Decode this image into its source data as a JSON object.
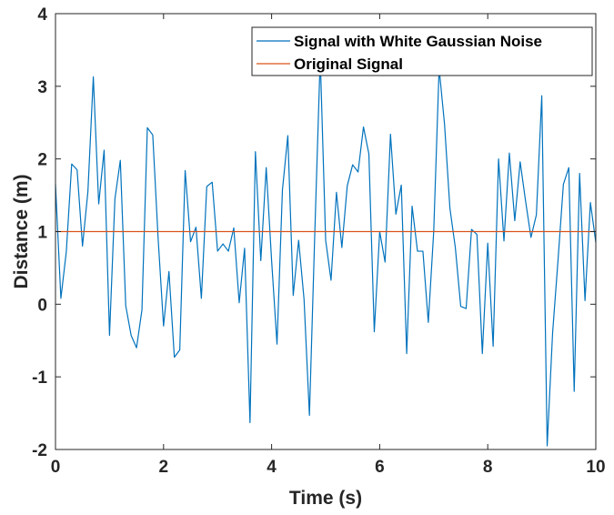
{
  "chart_data": {
    "type": "line",
    "title": "",
    "xlabel": "Time (s)",
    "ylabel": "Distance (m)",
    "xlim": [
      0,
      10
    ],
    "ylim": [
      -2,
      4
    ],
    "xticks": [
      0,
      2,
      4,
      6,
      8,
      10
    ],
    "yticks": [
      -2,
      -1,
      0,
      1,
      2,
      3,
      4
    ],
    "xtick_labels": [
      "0",
      "2",
      "4",
      "6",
      "8",
      "10"
    ],
    "ytick_labels": [
      "-2",
      "-1",
      "0",
      "1",
      "2",
      "3",
      "4"
    ],
    "grid": false,
    "legend_position": "top-right",
    "series": [
      {
        "name": "Signal with White Gaussian Noise",
        "color": "#0072BD",
        "x": [
          0,
          0.1,
          0.2,
          0.3,
          0.4,
          0.5,
          0.6,
          0.7,
          0.8,
          0.9,
          1.0,
          1.1,
          1.2,
          1.3,
          1.4,
          1.5,
          1.6,
          1.7,
          1.8,
          1.9,
          2.0,
          2.1,
          2.2,
          2.3,
          2.4,
          2.5,
          2.6,
          2.7,
          2.8,
          2.9,
          3.0,
          3.1,
          3.2,
          3.3,
          3.4,
          3.5,
          3.6,
          3.7,
          3.8,
          3.9,
          4.0,
          4.1,
          4.2,
          4.3,
          4.4,
          4.5,
          4.6,
          4.7,
          4.8,
          4.9,
          5.0,
          5.1,
          5.2,
          5.3,
          5.4,
          5.5,
          5.6,
          5.7,
          5.8,
          5.9,
          6.0,
          6.1,
          6.2,
          6.3,
          6.4,
          6.5,
          6.6,
          6.7,
          6.8,
          6.9,
          7.0,
          7.1,
          7.2,
          7.3,
          7.4,
          7.5,
          7.6,
          7.7,
          7.8,
          7.9,
          8.0,
          8.1,
          8.2,
          8.3,
          8.4,
          8.5,
          8.6,
          8.7,
          8.8,
          8.9,
          9.0,
          9.1,
          9.2,
          9.3,
          9.4,
          9.5,
          9.6,
          9.7,
          9.8,
          9.9,
          10.0
        ],
        "values": [
          1.65,
          0.08,
          0.72,
          1.93,
          1.85,
          0.8,
          1.55,
          3.13,
          1.38,
          2.12,
          -0.43,
          1.45,
          1.98,
          -0.02,
          -0.43,
          -0.6,
          -0.08,
          2.43,
          2.33,
          0.9,
          -0.3,
          0.45,
          -0.73,
          -0.63,
          1.84,
          0.86,
          1.06,
          0.08,
          1.62,
          1.68,
          0.73,
          0.83,
          0.73,
          1.05,
          0.02,
          0.77,
          -1.63,
          2.1,
          0.6,
          1.88,
          0.6,
          -0.55,
          1.57,
          2.32,
          0.12,
          0.88,
          0.07,
          -1.53,
          1.0,
          3.4,
          0.88,
          0.33,
          1.54,
          0.78,
          1.63,
          1.92,
          1.82,
          2.44,
          2.07,
          -0.38,
          1.0,
          0.58,
          2.34,
          1.24,
          1.64,
          -0.68,
          1.35,
          0.73,
          0.73,
          -0.25,
          1.0,
          3.25,
          2.48,
          1.32,
          0.78,
          -0.03,
          -0.06,
          1.03,
          0.96,
          -0.68,
          0.84,
          -0.58,
          2.0,
          0.87,
          2.08,
          1.15,
          1.96,
          1.42,
          0.92,
          1.23,
          2.87,
          -1.95,
          -0.4,
          0.6,
          1.65,
          1.88,
          -1.2,
          1.8,
          0.05,
          1.4,
          0.85
        ]
      },
      {
        "name": "Original Signal",
        "color": "#D95319",
        "x": [
          0,
          10
        ],
        "values": [
          1,
          1
        ]
      }
    ]
  }
}
